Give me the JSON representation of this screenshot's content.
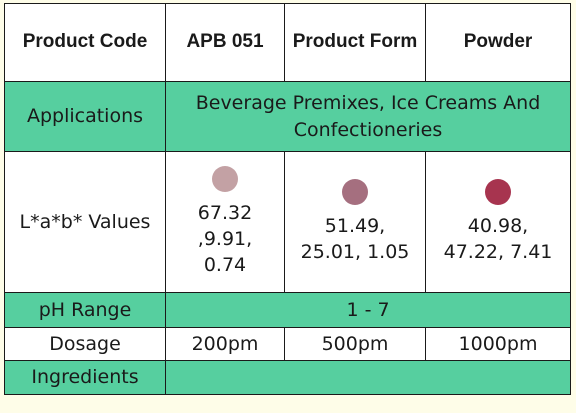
{
  "header": {
    "product_code_label": "Product Code",
    "product_code_value": "APB 051",
    "product_form_label": "Product Form",
    "product_form_value": "Powder"
  },
  "applications": {
    "label": "Applications",
    "value": "Beverage Premixes, Ice Creams And Confectioneries"
  },
  "lab_values": {
    "label": "L*a*b* Values",
    "items": [
      {
        "color": "#c3a1a4",
        "value": "67.32 ,9.91, 0.74"
      },
      {
        "color": "#a56f7f",
        "value": "51.49, 25.01, 1.05"
      },
      {
        "color": "#a7344f",
        "value": "40.98, 47.22, 7.41"
      }
    ]
  },
  "ph": {
    "label": "pH Range",
    "value": "1 - 7"
  },
  "dosage": {
    "label": "Dosage",
    "values": [
      "200pm",
      "500pm",
      "1000pm"
    ]
  },
  "ingredients": {
    "label": "Ingredients",
    "value": ""
  },
  "colors": {
    "accent_green": "#56cf9f",
    "page_background": "#fefde8"
  }
}
